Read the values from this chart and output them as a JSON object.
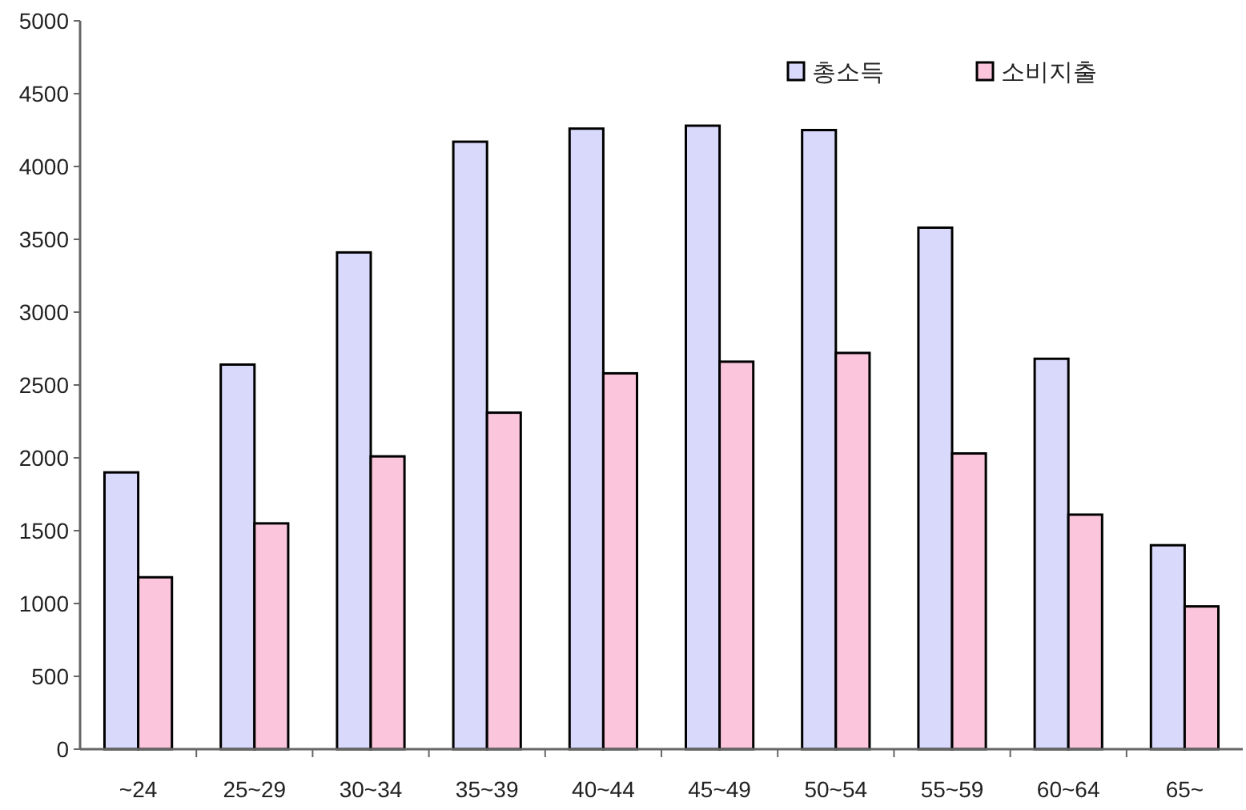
{
  "chart_data": {
    "type": "bar",
    "categories": [
      "~24",
      "25~29",
      "30~34",
      "35~39",
      "40~44",
      "45~49",
      "50~54",
      "55~59",
      "60~64",
      "65~"
    ],
    "series": [
      {
        "name": "총소득",
        "color": "#d9d9fb",
        "values": [
          1900,
          2640,
          3410,
          4170,
          4260,
          4280,
          4250,
          3580,
          2680,
          1400
        ]
      },
      {
        "name": "소비지출",
        "color": "#fbc6dc",
        "values": [
          1180,
          1550,
          2010,
          2310,
          2580,
          2660,
          2720,
          2030,
          1610,
          980
        ]
      }
    ],
    "ylim": [
      0,
      5000
    ],
    "yticks": [
      0,
      500,
      1000,
      1500,
      2000,
      2500,
      3000,
      3500,
      4000,
      4500,
      5000
    ],
    "grid": false,
    "legend": "top right"
  }
}
